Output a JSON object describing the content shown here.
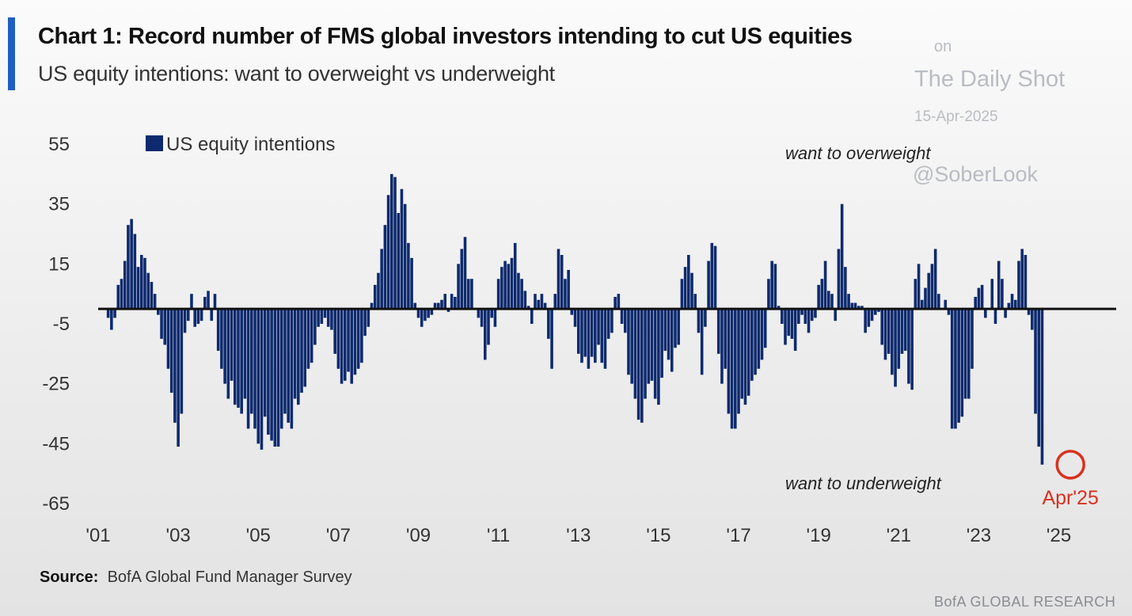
{
  "header": {
    "title": "Chart 1: Record number of FMS global investors intending to cut US equities",
    "subtitle": "US equity intentions: want to overweight vs underweight"
  },
  "watermark": {
    "line1": "on",
    "line2": "The Daily Shot",
    "line3": "15-Apr-2025",
    "line4": "@SoberLook"
  },
  "footer": {
    "source_label": "Source:",
    "source_text": "BofA Global Fund Manager Survey",
    "brand": "BofA GLOBAL RESEARCH"
  },
  "colors": {
    "bar": "#0d2a6e",
    "accent": "#1f5fc4",
    "highlight": "#d8311f",
    "axis": "#111111"
  },
  "chart_data": {
    "type": "bar",
    "title": "Chart 1: Record number of FMS global investors intending to cut US equities",
    "subtitle": "US equity intentions: want to overweight vs underweight",
    "xlabel": "",
    "ylabel": "",
    "ylim": [
      -65,
      55
    ],
    "yticks": [
      55,
      35,
      15,
      -5,
      -25,
      -45,
      -65
    ],
    "xlim": [
      2001.0,
      2025.8
    ],
    "xticks": [
      {
        "value": 2001,
        "label": "'01"
      },
      {
        "value": 2003,
        "label": "'03"
      },
      {
        "value": 2005,
        "label": "'05"
      },
      {
        "value": 2007,
        "label": "'07"
      },
      {
        "value": 2009,
        "label": "'09"
      },
      {
        "value": 2011,
        "label": "'11"
      },
      {
        "value": 2013,
        "label": "'13"
      },
      {
        "value": 2015,
        "label": "'15"
      },
      {
        "value": 2017,
        "label": "'17"
      },
      {
        "value": 2019,
        "label": "'19"
      },
      {
        "value": 2021,
        "label": "'21"
      },
      {
        "value": 2023,
        "label": "'23"
      },
      {
        "value": 2025,
        "label": "'25"
      }
    ],
    "grid": false,
    "legend": {
      "position": "top-left",
      "entries": [
        "US equity intentions"
      ]
    },
    "annotations": {
      "top": "want to overweight",
      "bottom": "want to underweight",
      "highlight_label": "Apr'25"
    },
    "highlight": {
      "x": 2025.29,
      "y": -52
    },
    "series": [
      {
        "name": "US equity intentions",
        "start": 2001.25,
        "step": 0.083333,
        "values": [
          -3,
          -7,
          -3,
          8,
          10,
          16,
          28,
          30,
          25,
          14,
          18,
          17,
          12,
          9,
          5,
          -2,
          -10,
          -12,
          -20,
          -28,
          -38,
          -46,
          -35,
          -8,
          -4,
          5,
          -6,
          -5,
          -4,
          4,
          6,
          -4,
          5,
          -14,
          -20,
          -25,
          -30,
          -24,
          -32,
          -33,
          -35,
          -30,
          -40,
          -35,
          -40,
          -45,
          -47,
          -36,
          -42,
          -44,
          -46,
          -46,
          -40,
          -35,
          -38,
          -40,
          -30,
          -32,
          -28,
          -26,
          -20,
          -18,
          -12,
          -6,
          -5,
          -3,
          -6,
          -7,
          -15,
          -20,
          -25,
          -24,
          -21,
          -25,
          -22,
          -20,
          -18,
          -9,
          -6,
          2,
          8,
          12,
          20,
          28,
          38,
          45,
          44,
          32,
          40,
          35,
          22,
          17,
          2,
          -3,
          -6,
          -4,
          -3,
          -2,
          2,
          2,
          3,
          5,
          -1,
          5,
          4,
          15,
          20,
          24,
          10,
          10,
          0,
          -3,
          -6,
          -17,
          -12,
          -3,
          -6,
          10,
          14,
          16,
          15,
          17,
          22,
          12,
          10,
          6,
          1,
          -5,
          5,
          3,
          5,
          2,
          -10,
          -20,
          5,
          20,
          18,
          10,
          13,
          -2,
          -6,
          -15,
          -18,
          -16,
          -20,
          -16,
          -18,
          -12,
          -18,
          -20,
          -10,
          -8,
          4,
          5,
          -5,
          -8,
          -22,
          -25,
          -30,
          -37,
          -38,
          -30,
          -25,
          -24,
          -30,
          -32,
          -23,
          -14,
          -17,
          -21,
          -13,
          -12,
          10,
          14,
          18,
          12,
          5,
          -8,
          -22,
          -6,
          16,
          22,
          21,
          -15,
          -25,
          -20,
          -35,
          -40,
          -40,
          -35,
          -30,
          -32,
          -29,
          -24,
          -22,
          -20,
          -17,
          -13,
          10,
          16,
          15,
          1,
          -5,
          -12,
          -9,
          -10,
          -14,
          -5,
          -2,
          -5,
          -8,
          -4,
          -3,
          8,
          10,
          16,
          6,
          5,
          -4,
          20,
          35,
          14,
          5,
          2,
          2,
          1,
          1,
          -8,
          -6,
          -4,
          -2,
          -1,
          -12,
          -17,
          -15,
          -22,
          -26,
          -20,
          -15,
          -14,
          -25,
          -27,
          10,
          15,
          3,
          7,
          12,
          15,
          20,
          5,
          0,
          3,
          -2,
          -40,
          -40,
          -38,
          -36,
          -30,
          -30,
          -20,
          4,
          7,
          8,
          -3,
          0,
          10,
          -5,
          16,
          10,
          -3,
          2,
          5,
          3,
          16,
          20,
          18,
          -2,
          -7,
          -35,
          -46,
          -52
        ]
      }
    ]
  }
}
